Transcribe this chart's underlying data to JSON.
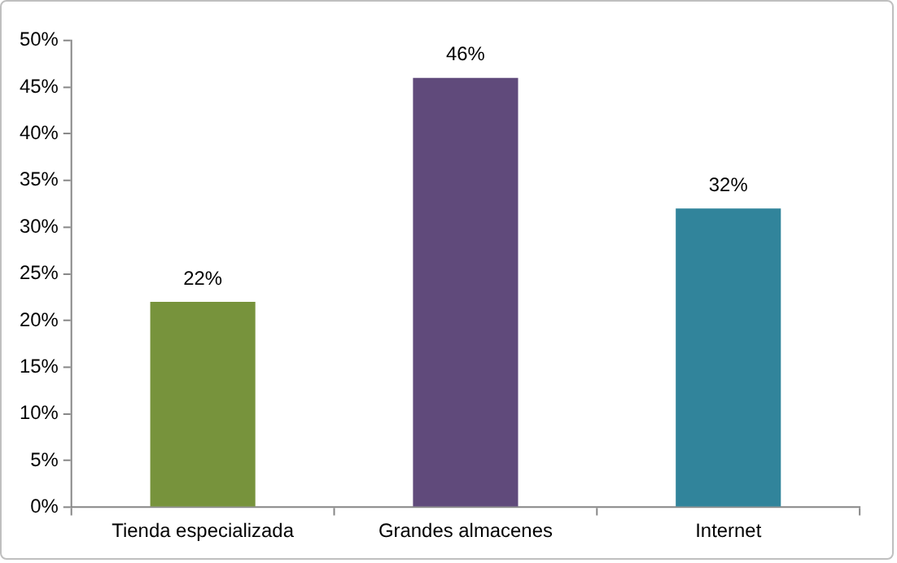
{
  "chart_data": {
    "type": "bar",
    "categories": [
      "Tienda especializada",
      "Grandes almacenes",
      "Internet"
    ],
    "values": [
      22,
      46,
      32
    ],
    "colors": [
      "#77933c",
      "#604a7b",
      "#31849b"
    ],
    "value_labels": [
      "22%",
      "46%",
      "32%"
    ],
    "ylim": [
      0,
      50
    ],
    "yticks": [
      {
        "value": 0,
        "label": "0%"
      },
      {
        "value": 5,
        "label": "5%"
      },
      {
        "value": 10,
        "label": "10%"
      },
      {
        "value": 15,
        "label": "15%"
      },
      {
        "value": 20,
        "label": "20%"
      },
      {
        "value": 25,
        "label": "25%"
      },
      {
        "value": 30,
        "label": "30%"
      },
      {
        "value": 35,
        "label": "35%"
      },
      {
        "value": 40,
        "label": "40%"
      },
      {
        "value": 45,
        "label": "45%"
      },
      {
        "value": 50,
        "label": "50%"
      }
    ],
    "grid": false,
    "legend": false
  }
}
